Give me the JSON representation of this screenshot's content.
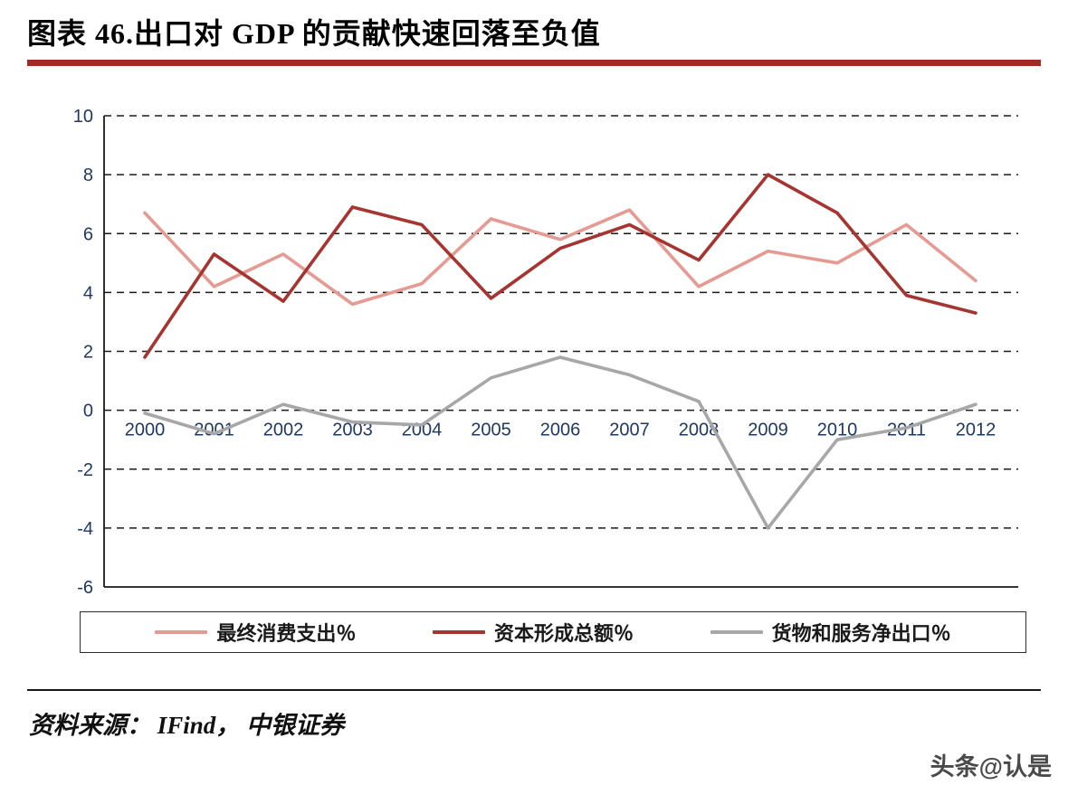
{
  "header": {
    "title": "图表 46.出口对 GDP 的贡献快速回落至负值"
  },
  "chart_data": {
    "type": "line",
    "title": "图表 46.出口对 GDP 的贡献快速回落至负值",
    "x": [
      2000,
      2001,
      2002,
      2003,
      2004,
      2005,
      2006,
      2007,
      2008,
      2009,
      2010,
      2011,
      2012
    ],
    "series": [
      {
        "name": "最终消费支出％",
        "color": "#E59A92",
        "values": [
          6.7,
          4.2,
          5.3,
          3.6,
          4.3,
          6.5,
          5.8,
          6.8,
          4.2,
          5.4,
          5.0,
          6.3,
          4.4
        ]
      },
      {
        "name": "资本形成总额％",
        "color": "#A63430",
        "values": [
          1.8,
          5.3,
          3.7,
          6.9,
          6.3,
          3.8,
          5.5,
          6.3,
          5.1,
          8.0,
          6.7,
          3.9,
          3.3
        ]
      },
      {
        "name": "货物和服务净出口％",
        "color": "#A7A7A7",
        "values": [
          -0.1,
          -0.8,
          0.2,
          -0.4,
          -0.5,
          1.1,
          1.8,
          1.2,
          0.3,
          -4.0,
          -1.0,
          -0.6,
          0.2
        ]
      }
    ],
    "ylim": [
      -6,
      10
    ],
    "ytick_step": 2,
    "ytick_labels": [
      "-6",
      "-4",
      "-2",
      "0",
      "2",
      "4",
      "6",
      "8",
      "10"
    ],
    "grid": "horizontal-dashed",
    "legend_position": "bottom",
    "x_labels_at_zero_line": true
  },
  "colors": {
    "title_underline": "#9E2A22",
    "axis_label": "#1F3864",
    "grid_line": "#1a1a1a"
  },
  "footer": {
    "source": "资料来源： IFind， 中银证券",
    "watermark": "头条@认是"
  }
}
